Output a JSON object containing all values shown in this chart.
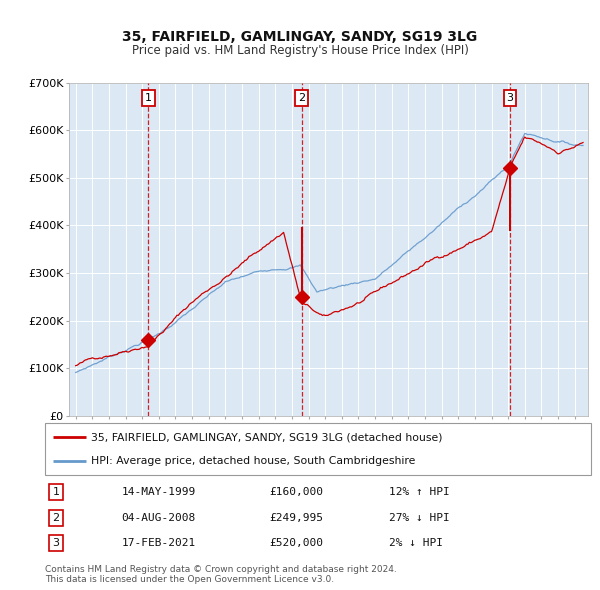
{
  "title_line1": "35, FAIRFIELD, GAMLINGAY, SANDY, SG19 3LG",
  "title_line2": "Price paid vs. HM Land Registry's House Price Index (HPI)",
  "ylim": [
    0,
    700000
  ],
  "yticks": [
    0,
    100000,
    200000,
    300000,
    400000,
    500000,
    600000,
    700000
  ],
  "ytick_labels": [
    "£0",
    "£100K",
    "£200K",
    "£300K",
    "£400K",
    "£500K",
    "£600K",
    "£700K"
  ],
  "plot_bg_color": "#dce9f5",
  "grid_color": "#ffffff",
  "sale_dates": [
    1999.37,
    2008.59,
    2021.12
  ],
  "sale_prices": [
    160000,
    249995,
    520000
  ],
  "sale_labels": [
    "1",
    "2",
    "3"
  ],
  "vline_color": "#cc0000",
  "sale_marker_color": "#cc0000",
  "hpi_line_color": "#6699cc",
  "price_line_color": "#cc0000",
  "legend_label_price": "35, FAIRFIELD, GAMLINGAY, SANDY, SG19 3LG (detached house)",
  "legend_label_hpi": "HPI: Average price, detached house, South Cambridgeshire",
  "table_rows": [
    [
      "1",
      "14-MAY-1999",
      "£160,000",
      "12% ↑ HPI"
    ],
    [
      "2",
      "04-AUG-2008",
      "£249,995",
      "27% ↓ HPI"
    ],
    [
      "3",
      "17-FEB-2021",
      "£520,000",
      "2% ↓ HPI"
    ]
  ],
  "footer_text": "Contains HM Land Registry data © Crown copyright and database right 2024.\nThis data is licensed under the Open Government Licence v3.0.",
  "xstart": 1995,
  "xend": 2025
}
